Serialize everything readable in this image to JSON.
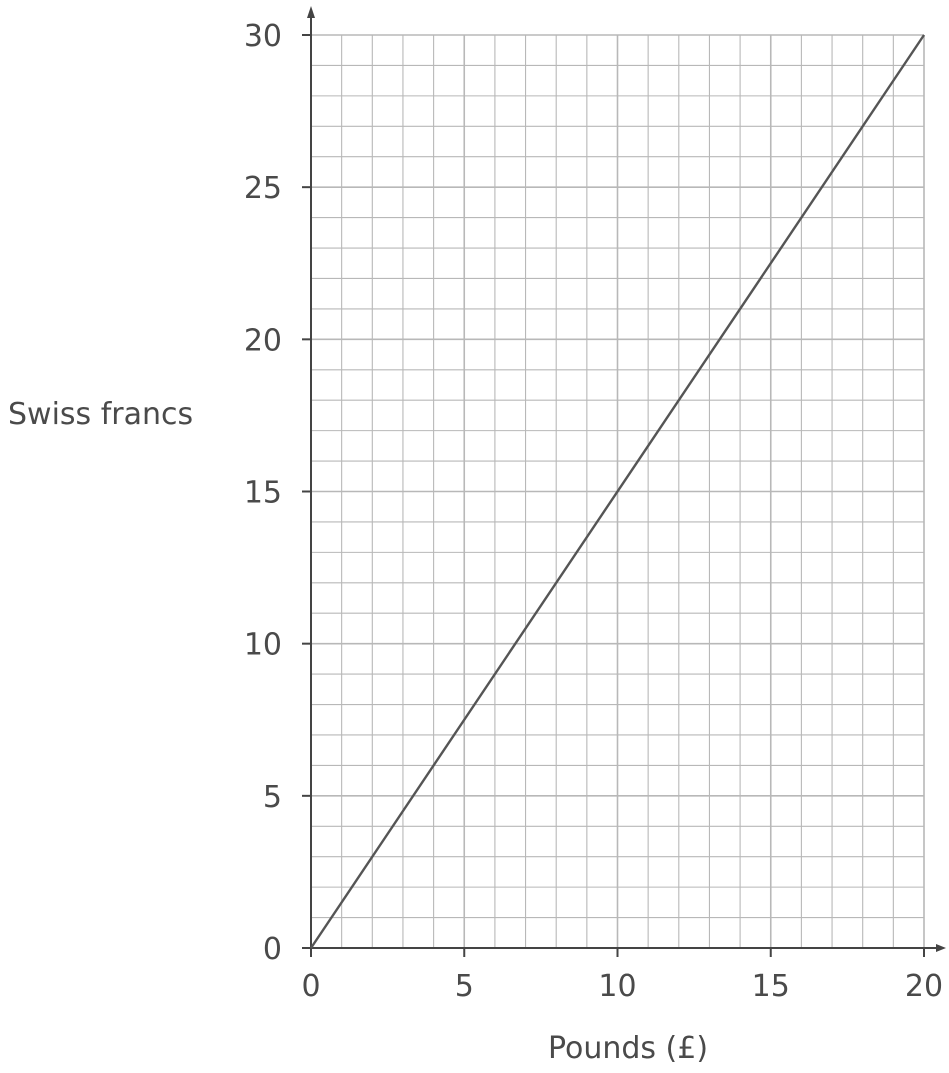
{
  "chart_data": {
    "type": "line",
    "xlabel": "Pounds (£)",
    "ylabel": "Swiss francs",
    "xlim": [
      0,
      20
    ],
    "ylim": [
      0,
      30
    ],
    "x_ticks": [
      "0",
      "5",
      "10",
      "15",
      "20"
    ],
    "y_ticks": [
      "0",
      "5",
      "10",
      "15",
      "20",
      "25",
      "30"
    ],
    "grid": true,
    "grid_minor_x_step": 1,
    "grid_minor_y_step": 1,
    "series": [
      {
        "x": [
          0,
          20
        ],
        "y": [
          0,
          30
        ]
      }
    ],
    "colors": {
      "line": "#555555",
      "grid": "#b8b8b8",
      "axis": "#444444",
      "text": "#4a4a4a"
    }
  }
}
